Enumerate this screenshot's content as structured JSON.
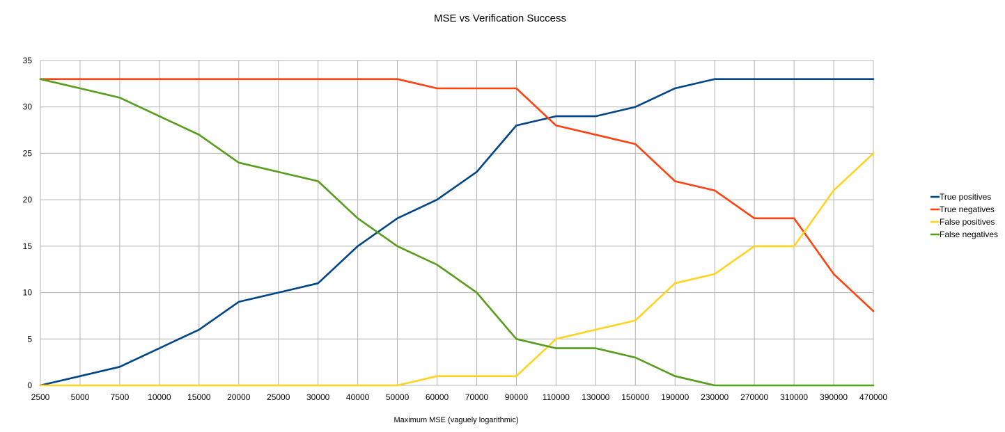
{
  "chart_data": {
    "type": "line",
    "title": "MSE vs Verification Success",
    "xlabel": "Maximum MSE (vaguely logarithmic)",
    "ylabel": "",
    "ylim": [
      0,
      35
    ],
    "y_ticks": [
      0,
      5,
      10,
      15,
      20,
      25,
      30,
      35
    ],
    "grid": true,
    "legend_position": "right",
    "categories": [
      "2500",
      "5000",
      "7500",
      "10000",
      "15000",
      "20000",
      "25000",
      "30000",
      "40000",
      "50000",
      "60000",
      "70000",
      "90000",
      "110000",
      "130000",
      "150000",
      "190000",
      "230000",
      "270000",
      "310000",
      "390000",
      "470000"
    ],
    "series": [
      {
        "name": "True positives",
        "color": "#004586",
        "values": [
          0,
          1,
          2,
          4,
          6,
          9,
          10,
          11,
          15,
          18,
          20,
          23,
          28,
          29,
          29,
          30,
          32,
          33,
          33,
          33,
          33,
          33
        ]
      },
      {
        "name": "True negatives",
        "color": "#ff420e",
        "values": [
          33,
          33,
          33,
          33,
          33,
          33,
          33,
          33,
          33,
          33,
          32,
          32,
          32,
          28,
          27,
          26,
          22,
          21,
          18,
          18,
          12,
          8
        ]
      },
      {
        "name": "False positives",
        "color": "#ffd320",
        "values": [
          0,
          0,
          0,
          0,
          0,
          0,
          0,
          0,
          0,
          0,
          1,
          1,
          1,
          5,
          6,
          7,
          11,
          12,
          15,
          15,
          21,
          25
        ]
      },
      {
        "name": "False negatives",
        "color": "#579d1c",
        "values": [
          33,
          32,
          31,
          29,
          27,
          24,
          23,
          22,
          18,
          15,
          13,
          10,
          5,
          4,
          4,
          3,
          1,
          0,
          0,
          0,
          0,
          0
        ]
      }
    ]
  }
}
